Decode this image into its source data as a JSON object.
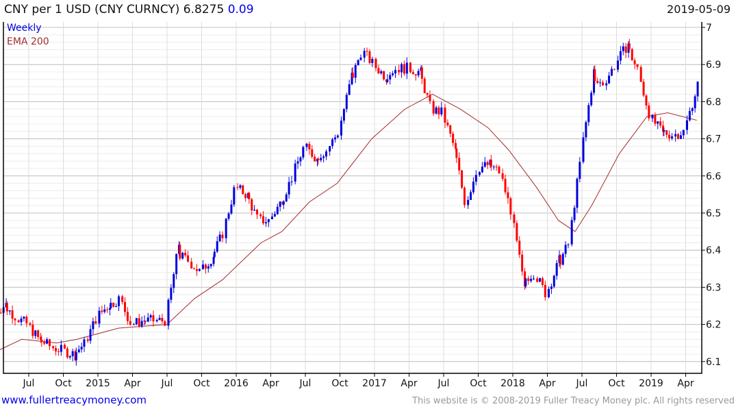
{
  "header": {
    "title": "CNY per 1 USD (CNY CURNCY) 6.8275",
    "change": "0.09",
    "date": "2019-05-09"
  },
  "footer": {
    "site": "www.fullertreacymoney.com",
    "copyright": "This website is © 2008-2019 Fuller Treacy Money plc. All rights reserved"
  },
  "colors": {
    "up": "#0000dd",
    "down": "#ff0000",
    "ema": "#a52a2a",
    "grid": "#d8d8d8"
  },
  "chart_data": {
    "type": "candlestick",
    "title": "CNY per 1 USD (CNY CURNCY)",
    "legend": [
      "Weekly",
      "EMA 200"
    ],
    "legend_position": "top-left",
    "ylim": [
      6.08,
      7.02
    ],
    "yticks": [
      "6.1",
      "6.2",
      "6.3",
      "6.4",
      "6.5",
      "6.6",
      "6.7",
      "6.8",
      "6.9",
      "7"
    ],
    "xticks": [
      {
        "label": "Jul",
        "t": 2014.5
      },
      {
        "label": "Oct",
        "t": 2014.75
      },
      {
        "label": "2015",
        "t": 2015.0
      },
      {
        "label": "Apr",
        "t": 2015.25
      },
      {
        "label": "Jul",
        "t": 2015.5
      },
      {
        "label": "Oct",
        "t": 2015.75
      },
      {
        "label": "2016",
        "t": 2016.0
      },
      {
        "label": "Apr",
        "t": 2016.25
      },
      {
        "label": "Jul",
        "t": 2016.5
      },
      {
        "label": "Oct",
        "t": 2016.75
      },
      {
        "label": "2017",
        "t": 2017.0
      },
      {
        "label": "Apr",
        "t": 2017.25
      },
      {
        "label": "Jul",
        "t": 2017.5
      },
      {
        "label": "Oct",
        "t": 2017.75
      },
      {
        "label": "2018",
        "t": 2018.0
      },
      {
        "label": "Apr",
        "t": 2018.25
      },
      {
        "label": "Jul",
        "t": 2018.5
      },
      {
        "label": "Oct",
        "t": 2018.75
      },
      {
        "label": "2019",
        "t": 2019.0
      },
      {
        "label": "Apr",
        "t": 2019.25
      }
    ],
    "monthly_close": {
      "months": [
        "2014-04",
        "2014-05",
        "2014-06",
        "2014-07",
        "2014-08",
        "2014-09",
        "2014-10",
        "2014-11",
        "2014-12",
        "2015-01",
        "2015-02",
        "2015-03",
        "2015-04",
        "2015-05",
        "2015-06",
        "2015-07",
        "2015-08",
        "2015-09",
        "2015-10",
        "2015-11",
        "2015-12",
        "2016-01",
        "2016-02",
        "2016-03",
        "2016-04",
        "2016-05",
        "2016-06",
        "2016-07",
        "2016-08",
        "2016-09",
        "2016-10",
        "2016-11",
        "2016-12",
        "2017-01",
        "2017-02",
        "2017-03",
        "2017-04",
        "2017-05",
        "2017-06",
        "2017-07",
        "2017-08",
        "2017-09",
        "2017-10",
        "2017-11",
        "2017-12",
        "2018-01",
        "2018-02",
        "2018-03",
        "2018-04",
        "2018-05",
        "2018-06",
        "2018-07",
        "2018-08",
        "2018-09",
        "2018-10",
        "2018-11",
        "2018-12",
        "2019-01",
        "2019-02",
        "2019-03",
        "2019-04",
        "2019-05"
      ],
      "values": [
        6.23,
        6.25,
        6.22,
        6.2,
        6.16,
        6.14,
        6.13,
        6.12,
        6.15,
        6.22,
        6.25,
        6.27,
        6.2,
        6.21,
        6.21,
        6.21,
        6.39,
        6.37,
        6.34,
        6.38,
        6.45,
        6.57,
        6.55,
        6.48,
        6.48,
        6.53,
        6.6,
        6.68,
        6.65,
        6.67,
        6.72,
        6.85,
        6.94,
        6.9,
        6.87,
        6.89,
        6.89,
        6.88,
        6.78,
        6.77,
        6.68,
        6.52,
        6.62,
        6.63,
        6.61,
        6.5,
        6.32,
        6.34,
        6.28,
        6.36,
        6.42,
        6.65,
        6.85,
        6.85,
        6.9,
        6.95,
        6.88,
        6.76,
        6.72,
        6.71,
        6.72,
        6.83
      ]
    },
    "ema200": {
      "t": [
        2014.28,
        2014.45,
        2014.7,
        2014.85,
        2015.15,
        2015.5,
        2015.7,
        2015.9,
        2016.18,
        2016.33,
        2016.53,
        2016.73,
        2016.98,
        2017.22,
        2017.42,
        2017.62,
        2017.82,
        2017.97,
        2018.17,
        2018.33,
        2018.45,
        2018.57,
        2018.77,
        2018.97,
        2019.12,
        2019.33
      ],
      "values": [
        6.13,
        6.16,
        6.15,
        6.16,
        6.19,
        6.2,
        6.27,
        6.32,
        6.42,
        6.45,
        6.53,
        6.58,
        6.7,
        6.78,
        6.82,
        6.78,
        6.73,
        6.67,
        6.57,
        6.48,
        6.45,
        6.52,
        6.66,
        6.76,
        6.77,
        6.75
      ]
    }
  }
}
